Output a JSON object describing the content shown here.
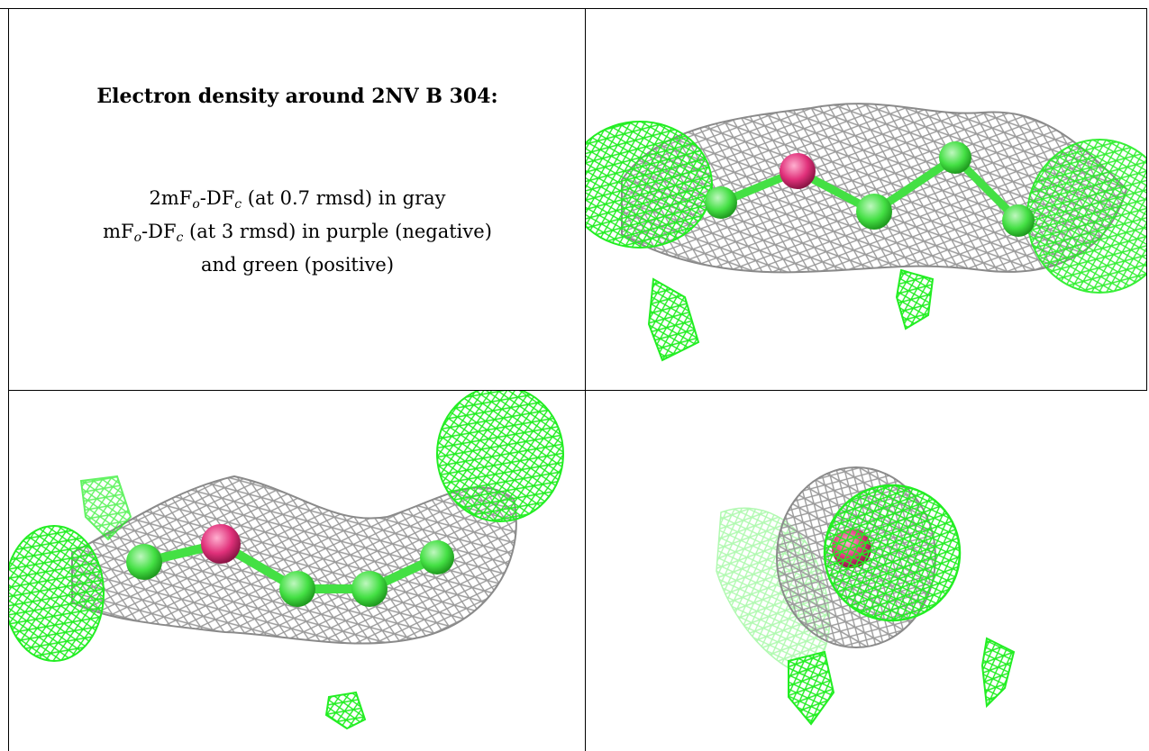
{
  "caption": {
    "title": "Electron density around 2NV B 304:",
    "line1_pre": "2mF",
    "line1_sub1": "o",
    "line1_mid": "-DF",
    "line1_sub2": "c",
    "line1_post": " (at 0.7 rmsd) in gray",
    "line2_pre": "mF",
    "line2_sub1": "o",
    "line2_mid": "-DF",
    "line2_sub2": "c",
    "line2_post": " (at 3 rmsd) in purple (negative)",
    "line3": "and green (positive)"
  },
  "colors": {
    "density_2fofc": "#9a9a9a",
    "density_positive": "#22ee22",
    "atom_carbon": "#44e044",
    "atom_hetero": "#e0307a",
    "border": "#000000"
  },
  "panels": [
    {
      "view": "view-1",
      "icon": "density-mesh"
    },
    {
      "view": "view-2",
      "icon": "density-mesh"
    },
    {
      "view": "view-3",
      "icon": "density-mesh"
    }
  ]
}
